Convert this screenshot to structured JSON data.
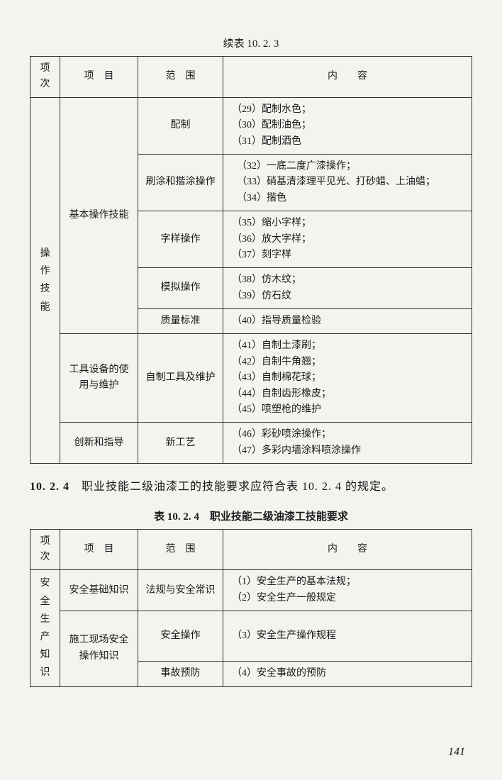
{
  "caption1": "续表 10. 2. 3",
  "table1": {
    "headers": [
      "项次",
      "项　目",
      "范　围",
      "内　　容"
    ],
    "col1": "操作技能",
    "group1": {
      "label": "基本操作技能",
      "rows": [
        {
          "scope": "配制",
          "content": "（29）配制水色；\n（30）配制油色；\n（31）配制酒色"
        },
        {
          "scope": "刷涂和揩涂操作",
          "content": "　（32）一底二度广漆操作；\n　（33）硝基清漆理平见光、打砂蜡、上油蜡；\n　（34）揩色"
        },
        {
          "scope": "字样操作",
          "content": "（35）缩小字样；\n（36）放大字样；\n（37）刻字样"
        },
        {
          "scope": "模拟操作",
          "content": "（38）仿木纹；\n（39）仿石纹"
        },
        {
          "scope": "质量标准",
          "content": "（40）指导质量检验"
        }
      ]
    },
    "group2": {
      "label": "工具设备的使用与维护",
      "rows": [
        {
          "scope": "自制工具及维护",
          "content": "（41）自制土漆刷；\n（42）自制牛角翘；\n（43）自制棉花球；\n（44）自制齿形橡皮；\n（45）喷塑枪的维护"
        }
      ]
    },
    "group3": {
      "label": "创新和指导",
      "rows": [
        {
          "scope": "新工艺",
          "content": "（46）彩砂喷涂操作；\n（47）多彩内墙涂料喷涂操作"
        }
      ]
    }
  },
  "section": {
    "num": "10. 2. 4",
    "text": "　职业技能二级油漆工的技能要求应符合表 10. 2. 4 的规定。"
  },
  "caption2": "表 10. 2. 4　职业技能二级油漆工技能要求",
  "table2": {
    "headers": [
      "项次",
      "项　目",
      "范　围",
      "内　　容"
    ],
    "col1": "安全生产知识",
    "rows": [
      {
        "item": "安全基础知识",
        "scope": "法规与安全常识",
        "content": "（1）安全生产的基本法规；\n（2）安全生产一般规定"
      },
      {
        "item": "施工现场安全操作知识",
        "scope": "安全操作",
        "content": "（3）安全生产操作规程"
      },
      {
        "scope": "事故预防",
        "content": "（4）安全事故的预防"
      }
    ]
  },
  "pageNumber": "141"
}
